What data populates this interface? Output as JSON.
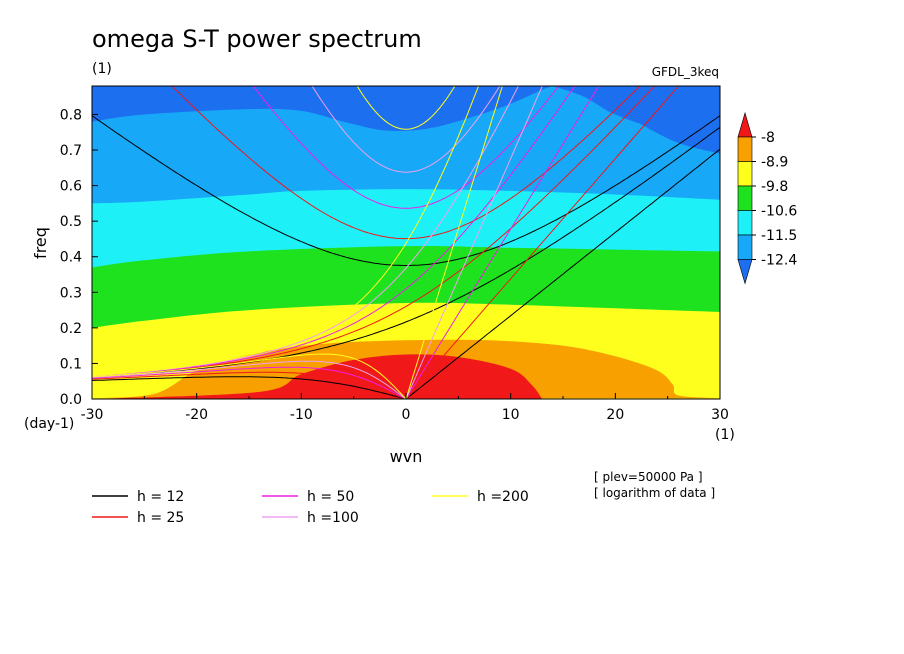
{
  "chart_data": {
    "type": "heatmap",
    "title": "omega S-T power spectrum",
    "subtitle": "(1)",
    "model_label": "GFDL_3keq",
    "xlabel": "wvn",
    "ylabel": "freq",
    "x_unit": "(1)",
    "y_unit": "(day-1)",
    "xlim": [
      -30,
      30
    ],
    "ylim": [
      0,
      0.88
    ],
    "x_ticks": [
      -30,
      -20,
      -10,
      0,
      10,
      20,
      30
    ],
    "x_tick_labels": [
      "-30",
      "-20",
      "-10",
      "0",
      "10",
      "20",
      "30"
    ],
    "y_ticks": [
      0,
      0.1,
      0.2,
      0.3,
      0.4,
      0.5,
      0.6,
      0.7,
      0.8
    ],
    "y_tick_labels": [
      "0.0",
      "0.1",
      "0.2",
      "0.3",
      "0.4",
      "0.5",
      "0.6",
      "0.7",
      "0.8"
    ],
    "colorbar": {
      "levels": [
        -8,
        -8.9,
        -9.8,
        -10.6,
        -11.5,
        -12.4
      ],
      "labels": [
        "-8",
        "-8.9",
        "-9.8",
        "-10.6",
        "-11.5",
        "-12.4"
      ],
      "colors": [
        "#f01818",
        "#f8a000",
        "#ffff1e",
        "#1ee21e",
        "#1ef0f8",
        "#18a8f8",
        "#1c70f0"
      ]
    },
    "contour_bands": [
      {
        "level": "above -8",
        "color": "#f01818",
        "boundary": [
          [
            -30,
            0
          ],
          [
            -14,
            0.02
          ],
          [
            -10,
            0.07
          ],
          [
            -5,
            0.11
          ],
          [
            0,
            0.125
          ],
          [
            5,
            0.118
          ],
          [
            10,
            0.085
          ],
          [
            12,
            0.04
          ],
          [
            13,
            0
          ]
        ]
      },
      {
        "level": "-8 to -8.9",
        "color": "#f8a000",
        "boundary": [
          [
            -30,
            0.002
          ],
          [
            -24,
            0.015
          ],
          [
            -20,
            0.08
          ],
          [
            -15,
            0.125
          ],
          [
            -8,
            0.155
          ],
          [
            0,
            0.165
          ],
          [
            8,
            0.165
          ],
          [
            15,
            0.15
          ],
          [
            20,
            0.12
          ],
          [
            24,
            0.08
          ],
          [
            25.5,
            0.04
          ],
          [
            26,
            0.01
          ],
          [
            30,
            0.002
          ]
        ]
      },
      {
        "level": "-8.9 to -9.8",
        "color": "#ffff1e",
        "boundary": [
          [
            -30,
            0.2
          ],
          [
            -25,
            0.22
          ],
          [
            -15,
            0.25
          ],
          [
            0,
            0.27
          ],
          [
            10,
            0.265
          ],
          [
            20,
            0.255
          ],
          [
            30,
            0.245
          ]
        ]
      },
      {
        "level": "-9.8 to -10.6",
        "color": "#1ee21e",
        "boundary": [
          [
            -30,
            0.37
          ],
          [
            -25,
            0.39
          ],
          [
            -15,
            0.415
          ],
          [
            0,
            0.43
          ],
          [
            10,
            0.425
          ],
          [
            20,
            0.42
          ],
          [
            30,
            0.415
          ]
        ]
      },
      {
        "level": "-10.6 to -11.5",
        "color": "#1ef0f8",
        "boundary": [
          [
            -30,
            0.55
          ],
          [
            -25,
            0.555
          ],
          [
            -15,
            0.575
          ],
          [
            -10,
            0.585
          ],
          [
            0,
            0.59
          ],
          [
            10,
            0.585
          ],
          [
            20,
            0.575
          ],
          [
            30,
            0.56
          ]
        ]
      },
      {
        "level": "-11.5 to -12.4",
        "color": "#18a8f8",
        "boundary": [
          [
            -30,
            0.78
          ],
          [
            -25,
            0.8
          ],
          [
            -15,
            0.815
          ],
          [
            -10,
            0.81
          ],
          [
            -6,
            0.78
          ],
          [
            -2,
            0.755
          ],
          [
            2,
            0.76
          ],
          [
            6,
            0.79
          ],
          [
            10,
            0.83
          ],
          [
            14,
            0.88
          ],
          [
            16,
            0.88
          ],
          [
            18,
            0.85
          ],
          [
            22,
            0.78
          ],
          [
            26,
            0.72
          ],
          [
            30,
            0.69
          ]
        ]
      },
      {
        "level": "below -12.4 (top centre)",
        "color": "#1c70f0",
        "boundary": [
          [
            -10,
            0.88
          ],
          [
            -8,
            0.865
          ],
          [
            -4,
            0.845
          ],
          [
            0,
            0.835
          ],
          [
            2,
            0.84
          ],
          [
            2.6,
            0.85
          ],
          [
            2.2,
            0.86
          ],
          [
            0,
            0.87
          ],
          [
            -6,
            0.88
          ]
        ]
      },
      {
        "level": "below -12.4 (top right)",
        "color": "#1c70f0",
        "boundary": [
          [
            14,
            0.88
          ],
          [
            17,
            0.85
          ],
          [
            20,
            0.8
          ],
          [
            25,
            0.75
          ],
          [
            30,
            0.72
          ],
          [
            30,
            0.88
          ]
        ]
      }
    ],
    "dispersion_curves": [
      {
        "name": "h = 12",
        "color": "#000000",
        "h": 12
      },
      {
        "name": "h = 25",
        "color": "#f01818",
        "h": 25
      },
      {
        "name": "h = 50",
        "color": "#f01ee6",
        "h": 50
      },
      {
        "name": "h =100",
        "color": "#f0a0f0",
        "h": 100
      },
      {
        "name": "h =200",
        "color": "#ffff1e",
        "h": 200
      }
    ],
    "annotations": [
      "[ plev=50000 Pa ]",
      "[ logarithm of data ]"
    ],
    "grid": false,
    "legend_position": "bottom"
  }
}
